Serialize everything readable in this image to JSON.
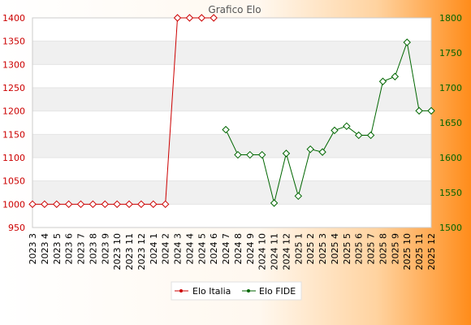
{
  "chart_data": {
    "type": "line",
    "title": "Grafico Elo",
    "categories": [
      "2023 3",
      "2023 4",
      "2023 5",
      "2023 6",
      "2023 7",
      "2023 8",
      "2023 9",
      "2023 10",
      "2023 11",
      "2023 12",
      "2024 1",
      "2024 2",
      "2024 3",
      "2024 4",
      "2024 5",
      "2024 6",
      "2024 7",
      "2024 8",
      "2024 9",
      "2024 10",
      "2024 11",
      "2024 12",
      "2025 1",
      "2025 2",
      "2025 3",
      "2025 4",
      "2025 5",
      "2025 6",
      "2025 7",
      "2025 8",
      "2025 9",
      "2025 10",
      "2025 11",
      "2025 12"
    ],
    "y_left": {
      "min": 950,
      "max": 1400,
      "ticks": [
        950,
        1000,
        1050,
        1100,
        1150,
        1200,
        1250,
        1300,
        1350,
        1400
      ]
    },
    "y_right": {
      "min": 1500,
      "max": 1800,
      "ticks": [
        1500,
        1550,
        1600,
        1650,
        1700,
        1750,
        1800
      ]
    },
    "series": [
      {
        "name": "Elo Italia",
        "axis": "left",
        "color": "#cc0000",
        "values": [
          1000,
          1000,
          1000,
          1000,
          1000,
          1000,
          1000,
          1000,
          1000,
          1000,
          1000,
          1000,
          1400,
          1400,
          1400,
          1400,
          null,
          null,
          null,
          null,
          null,
          null,
          null,
          null,
          null,
          null,
          null,
          null,
          null,
          null,
          null,
          null,
          null,
          null
        ]
      },
      {
        "name": "Elo FIDE",
        "axis": "right",
        "color": "#006600",
        "values": [
          null,
          null,
          null,
          null,
          null,
          null,
          null,
          null,
          null,
          null,
          null,
          null,
          null,
          null,
          null,
          null,
          1640,
          1604,
          1604,
          1604,
          1535,
          1606,
          1545,
          1612,
          1608,
          1639,
          1645,
          1632,
          1632,
          1709,
          1716,
          1765,
          1667,
          1667
        ]
      }
    ],
    "grid": true,
    "legend": "bottom-center",
    "colors": {
      "left_axis": "#cc0000",
      "right_axis": "#006600",
      "band": "#f0f0f0",
      "plot_bg": "#ffffff",
      "gradient_end": "#ff8c1a"
    }
  }
}
